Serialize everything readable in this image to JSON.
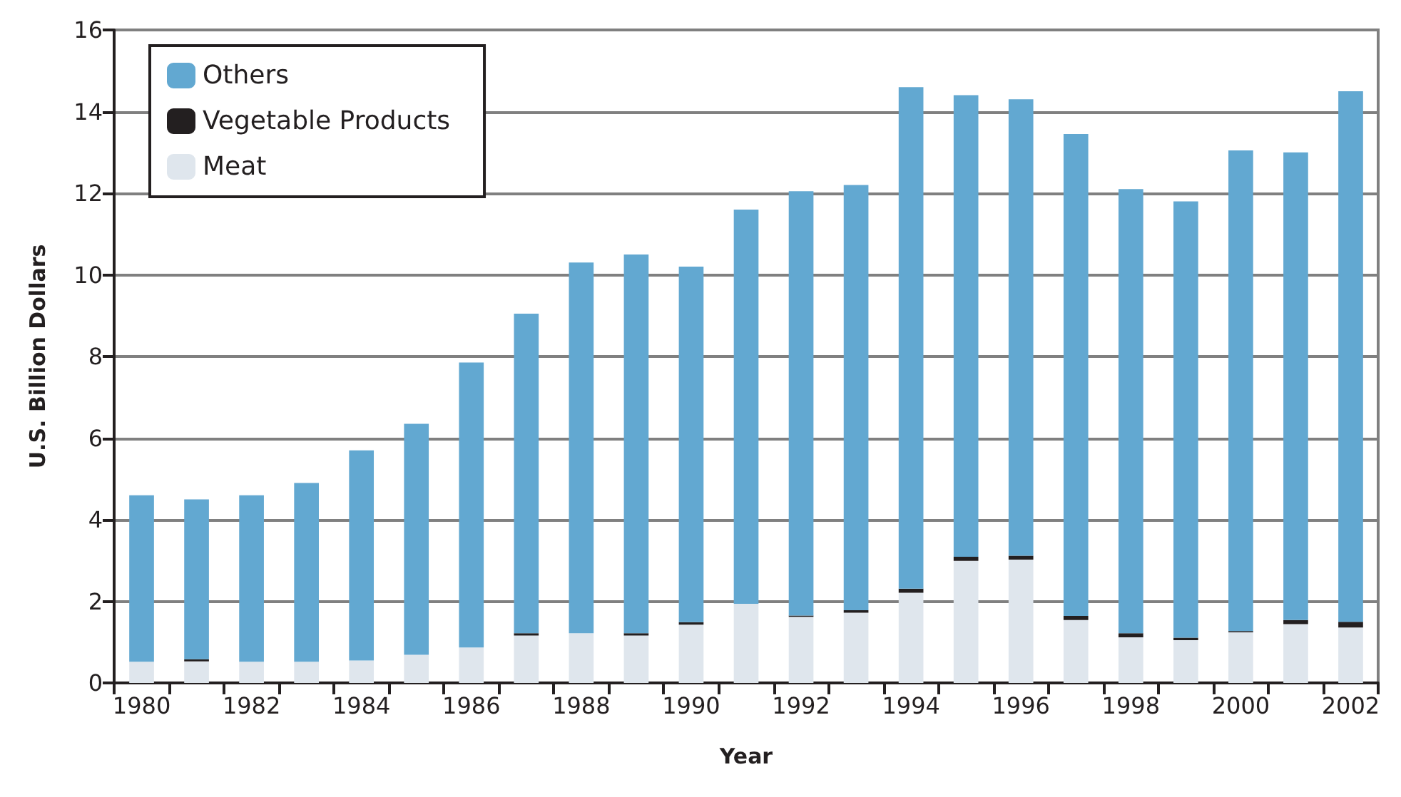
{
  "chart_data": {
    "type": "bar",
    "stacked": true,
    "xlabel": "Year",
    "ylabel": "U.S. Billion Dollars",
    "categories": [
      "1980",
      null,
      "1982",
      null,
      "1984",
      null,
      "1986",
      null,
      "1988",
      null,
      "1990",
      null,
      "1992",
      null,
      "1994",
      null,
      "1996",
      null,
      "1998",
      null,
      "2000",
      null,
      "2002"
    ],
    "series": [
      {
        "name": "Meat",
        "color": "#dfe6ed",
        "values": [
          0.52,
          0.53,
          0.52,
          0.52,
          0.55,
          0.69,
          0.87,
          1.16,
          1.22,
          1.16,
          1.43,
          1.94,
          1.62,
          1.72,
          2.21,
          2.99,
          3.02,
          1.54,
          1.12,
          1.05,
          1.24,
          1.44,
          1.36
        ]
      },
      {
        "name": "Vegetable Products",
        "color": "#231f20",
        "values": [
          0,
          0.05,
          0,
          0,
          0,
          0,
          0,
          0.06,
          0,
          0.06,
          0.06,
          0,
          0.03,
          0.06,
          0.1,
          0.1,
          0.1,
          0.1,
          0.1,
          0.06,
          0.03,
          0.1,
          0.14
        ]
      },
      {
        "name": "Others",
        "color": "#62a8d1",
        "values": [
          4.08,
          3.92,
          4.08,
          4.38,
          5.15,
          5.66,
          6.98,
          7.83,
          9.08,
          9.28,
          8.71,
          9.66,
          10.4,
          10.42,
          12.29,
          11.31,
          11.18,
          11.81,
          10.88,
          10.69,
          11.78,
          11.46,
          13.0
        ]
      }
    ],
    "ylim": [
      0,
      16
    ],
    "yticks": [
      0,
      2,
      4,
      6,
      8,
      10,
      12,
      14,
      16
    ],
    "grid": "y",
    "legend": "top left"
  }
}
